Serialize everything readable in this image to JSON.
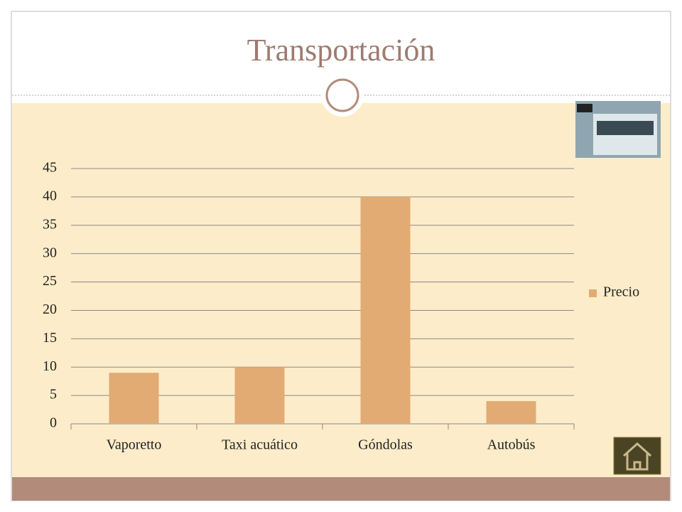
{
  "chart_data": {
    "type": "bar",
    "title": "Transportación",
    "categories": [
      "Vaporetto",
      "Taxi acuático",
      "Góndolas",
      "Autobús"
    ],
    "series": [
      {
        "name": "Precio",
        "color": "#e2ab74",
        "values": [
          9,
          10,
          40,
          4
        ]
      }
    ],
    "ylim": [
      0,
      45
    ],
    "yticks": [
      0,
      5,
      10,
      15,
      20,
      25,
      30,
      35,
      40,
      45
    ],
    "grid": true,
    "legend": "right"
  }
}
